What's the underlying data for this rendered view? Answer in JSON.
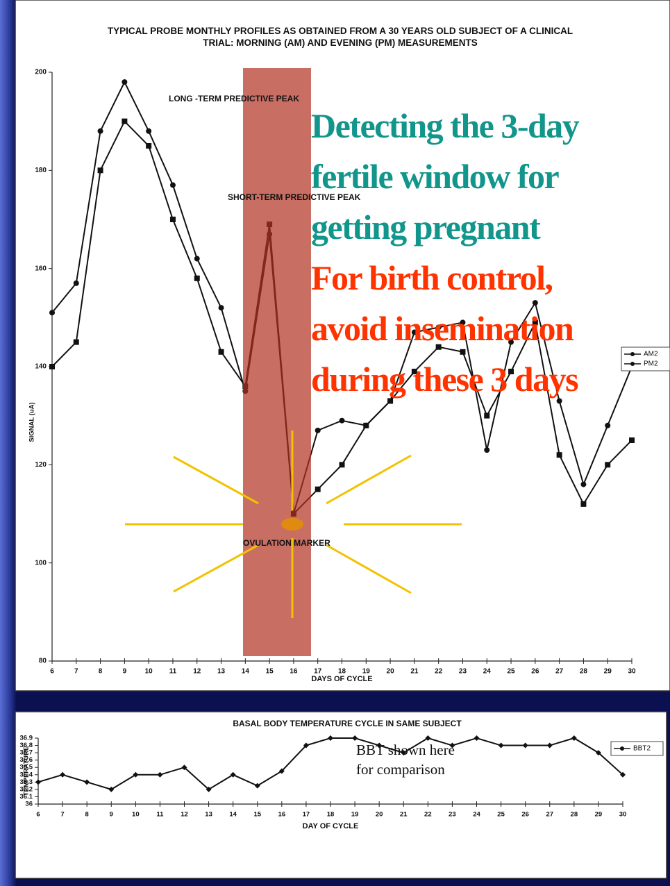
{
  "chart_data": [
    {
      "type": "line",
      "title": "TYPICAL PROBE MONTHLY PROFILES AS OBTAINED FROM A 30 YEARS OLD SUBJECT OF A CLINICAL TRIAL: MORNING (AM) AND EVENING (PM) MEASUREMENTS",
      "x_label": "DAYS OF CYCLE",
      "y_label": "SIGNAL (uA)",
      "x": [
        6,
        7,
        8,
        9,
        10,
        11,
        12,
        13,
        14,
        15,
        16,
        17,
        18,
        19,
        20,
        21,
        22,
        23,
        24,
        25,
        26,
        27,
        28,
        29,
        30
      ],
      "series": [
        {
          "name": "AM2",
          "color": "#111111",
          "marker": "square",
          "values": [
            140,
            145,
            180,
            190,
            185,
            170,
            158,
            143,
            136,
            169,
            110,
            115,
            120,
            128,
            133,
            139,
            144,
            143,
            130,
            139,
            149,
            122,
            112,
            120,
            125
          ]
        },
        {
          "name": "PM2",
          "color": "#111111",
          "marker": "circle",
          "values": [
            151,
            157,
            188,
            198,
            188,
            177,
            162,
            152,
            135,
            167,
            110,
            127,
            129,
            128,
            133,
            147,
            148,
            149,
            123,
            145,
            153,
            133,
            116,
            128,
            140
          ]
        }
      ],
      "xlim": [
        6,
        30
      ],
      "xticks": [
        6,
        7,
        8,
        9,
        10,
        11,
        12,
        13,
        14,
        15,
        16,
        17,
        18,
        19,
        20,
        21,
        22,
        23,
        24,
        25,
        26,
        27,
        28,
        29,
        30
      ],
      "ylim": [
        80,
        200
      ],
      "yticks": [
        80,
        100,
        120,
        140,
        160,
        180,
        200
      ],
      "grid": false,
      "legend": "right",
      "annotations": [
        "LONG -TERM PREDICTIVE PEAK",
        "SHORT-TERM PREDICTIVE PEAK",
        "OVULATION  MARKER"
      ],
      "callouts": [
        {
          "color": "#12968c",
          "lines": [
            "Detecting the 3-day",
            "fertile window for",
            "getting pregnant"
          ]
        },
        {
          "color": "#ff3300",
          "lines": [
            "For birth control,",
            "avoid insemination",
            "during these 3 days"
          ]
        }
      ]
    },
    {
      "type": "line",
      "title": "BASAL BODY TEMPERATURE CYCLE IN SAME SUBJECT",
      "x_label": "DAY OF CYCLE",
      "y_label": "TEMPERATURE",
      "x": [
        6,
        7,
        8,
        9,
        10,
        11,
        12,
        13,
        14,
        15,
        16,
        17,
        18,
        19,
        20,
        21,
        22,
        23,
        24,
        25,
        26,
        27,
        28,
        29,
        30
      ],
      "series": [
        {
          "name": "BBT2",
          "color": "#111111",
          "marker": "diamond",
          "values": [
            36.3,
            36.4,
            36.3,
            36.2,
            36.4,
            36.4,
            36.5,
            36.2,
            36.4,
            36.25,
            36.45,
            36.8,
            36.9,
            36.9,
            36.8,
            36.7,
            36.9,
            36.8,
            36.9,
            36.8,
            36.8,
            36.8,
            36.9,
            36.7,
            36.4
          ]
        }
      ],
      "xlim": [
        6,
        30
      ],
      "xticks": [
        6,
        7,
        8,
        9,
        10,
        11,
        12,
        13,
        14,
        15,
        16,
        17,
        18,
        19,
        20,
        21,
        22,
        23,
        24,
        25,
        26,
        27,
        28,
        29,
        30
      ],
      "ylim": [
        36,
        36.9
      ],
      "yticks": [
        36,
        36.1,
        36.2,
        36.3,
        36.4,
        36.5,
        36.6,
        36.7,
        36.8,
        36.9
      ],
      "grid": false,
      "legend": "right",
      "notes": [
        "BBT shown here",
        "for comparison"
      ]
    }
  ]
}
